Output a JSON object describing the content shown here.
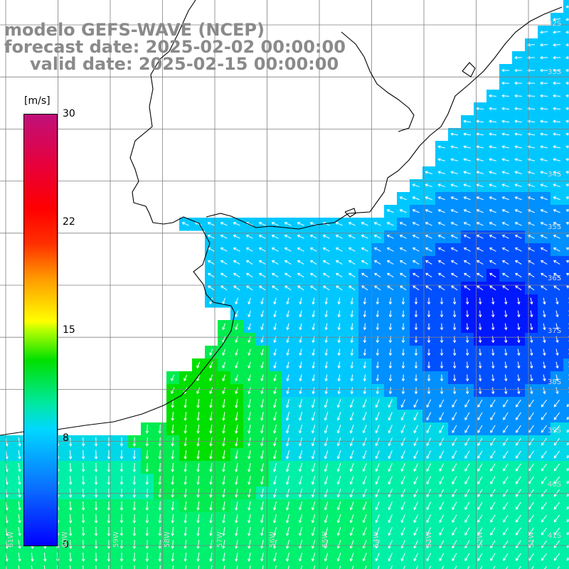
{
  "title": {
    "model": "modelo GEFS-WAVE (NCEP)",
    "forecast": "forecast date: 2025-02-02 00:00:00",
    "valid": "valid date: 2025-02-15 00:00:00"
  },
  "colorbar": {
    "unit": "[m/s]",
    "ticks": [
      "30",
      "22",
      "15",
      "8",
      "0"
    ],
    "colors": [
      "#0000ff",
      "#0a6cff",
      "#00d8ff",
      "#00e000",
      "#ffff00",
      "#ff9900",
      "#ff0000",
      "#c0107a"
    ]
  },
  "lat_labels": [
    "32S",
    "33S",
    "34S",
    "35S",
    "36S",
    "37S",
    "38S",
    "39S",
    "40S",
    "41S"
  ],
  "lon_labels": [
    "61W",
    "60W",
    "59W",
    "58W",
    "57W",
    "56W",
    "55W",
    "54W",
    "53W",
    "52W",
    "51W"
  ],
  "colors": {
    "land": "#ffffff",
    "coast": "#000000",
    "grid": "#808080",
    "arrows": "#ffffff",
    "title": "#8a8a8a"
  }
}
